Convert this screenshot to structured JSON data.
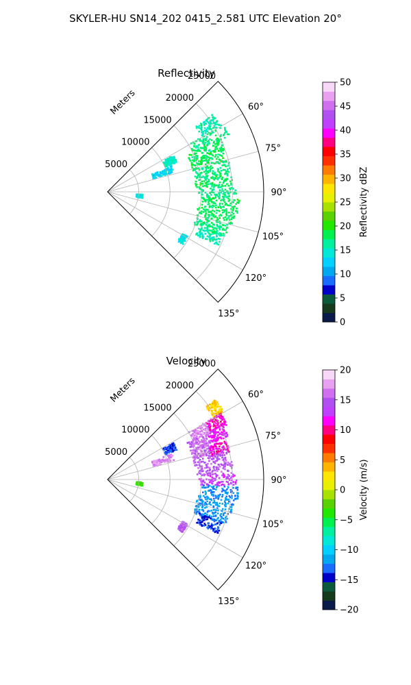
{
  "figure_title": "SKYLER-HU  SN14_202  0415_2.581 UTC Elevation 20°",
  "chart_data": [
    {
      "type": "heatmap",
      "title": "Reflectivity",
      "range_axis_label": "Meters",
      "range_ticks": [
        "5000",
        "10000",
        "15000",
        "20000",
        "25000"
      ],
      "range_values": [
        5000,
        10000,
        15000,
        20000,
        25000
      ],
      "range_max": 25000,
      "azimuth_ticks": [
        "60°",
        "75°",
        "90°",
        "105°",
        "120°",
        "135°"
      ],
      "azimuth_values": [
        60,
        75,
        90,
        105,
        120,
        135
      ],
      "azimuth_range": [
        45,
        135
      ],
      "grid": true,
      "colorbar": {
        "label": "Reflectivity dBZ",
        "min": 0,
        "max": 50,
        "ticks": [
          "0",
          "5",
          "10",
          "15",
          "20",
          "25",
          "30",
          "35",
          "40",
          "45",
          "50"
        ],
        "colors": [
          "#0a1b4a",
          "#153a1c",
          "#0c5a3c",
          "#0000c8",
          "#1a6cff",
          "#00a8f0",
          "#00d0ff",
          "#00e8d8",
          "#00f0a0",
          "#00f050",
          "#22e800",
          "#5ad200",
          "#a8e000",
          "#e6f000",
          "#ffe600",
          "#ffb400",
          "#ff7c00",
          "#ff3000",
          "#ff0000",
          "#ff0080",
          "#ff00ff",
          "#c040ff",
          "#b050f0",
          "#d070f0",
          "#e8a0f0",
          "#f8d8f8"
        ]
      },
      "cells": [
        {
          "az": 56,
          "r0": 17500,
          "r1": 21000,
          "value": 16
        },
        {
          "az": 62,
          "r0": 15000,
          "r1": 21500,
          "value": 17
        },
        {
          "az": 67,
          "r0": 14000,
          "r1": 20000,
          "value": 18
        },
        {
          "az": 72,
          "r0": 14000,
          "r1": 19500,
          "value": 18
        },
        {
          "az": 78,
          "r0": 14000,
          "r1": 20000,
          "value": 17
        },
        {
          "az": 84,
          "r0": 14000,
          "r1": 20000,
          "value": 18
        },
        {
          "az": 90,
          "r0": 14500,
          "r1": 20500,
          "value": 17
        },
        {
          "az": 96,
          "r0": 15000,
          "r1": 21000,
          "value": 18
        },
        {
          "az": 102,
          "r0": 14500,
          "r1": 20500,
          "value": 18
        },
        {
          "az": 108,
          "r0": 14500,
          "r1": 20000,
          "value": 17
        },
        {
          "az": 113,
          "r0": 15500,
          "r1": 19500,
          "value": 16
        },
        {
          "az": 63,
          "r0": 10000,
          "r1": 12000,
          "value": 15
        },
        {
          "az": 70,
          "r0": 7500,
          "r1": 11000,
          "value": 13
        },
        {
          "az": 96,
          "r0": 4500,
          "r1": 5500,
          "value": 14
        },
        {
          "az": 122,
          "r0": 13500,
          "r1": 14500,
          "value": 14
        }
      ]
    },
    {
      "type": "heatmap",
      "title": "Velocity",
      "range_axis_label": "Meters",
      "range_ticks": [
        "5000",
        "10000",
        "15000",
        "20000",
        "25000"
      ],
      "range_values": [
        5000,
        10000,
        15000,
        20000,
        25000
      ],
      "range_max": 25000,
      "azimuth_ticks": [
        "60°",
        "75°",
        "90°",
        "105°",
        "120°",
        "135°"
      ],
      "azimuth_values": [
        60,
        75,
        90,
        105,
        120,
        135
      ],
      "azimuth_range": [
        45,
        135
      ],
      "grid": true,
      "colorbar": {
        "label": "Velocity (m/s)",
        "min": -20,
        "max": 20,
        "ticks": [
          "−20",
          "−15",
          "−10",
          "−5",
          "0",
          "5",
          "10",
          "15",
          "20"
        ],
        "colors": [
          "#0a1b4a",
          "#153a1c",
          "#0c5a3c",
          "#0000c8",
          "#1a6cff",
          "#00a8f0",
          "#00d0ff",
          "#00e8d8",
          "#00f0a0",
          "#00f050",
          "#22e800",
          "#5ad200",
          "#a8e000",
          "#e6f000",
          "#ffe600",
          "#ffb400",
          "#ff7c00",
          "#ff3000",
          "#ff0000",
          "#ff0080",
          "#ff00ff",
          "#c040ff",
          "#b050f0",
          "#d070f0",
          "#e8a0f0",
          "#f8d8f8"
        ]
      },
      "cells": [
        {
          "az": 56,
          "r0": 19500,
          "r1": 21500,
          "value": 3
        },
        {
          "az": 62,
          "r0": 18000,
          "r1": 21000,
          "value": 11
        },
        {
          "az": 67,
          "r0": 17500,
          "r1": 20500,
          "value": 12
        },
        {
          "az": 62,
          "r0": 15000,
          "r1": 18000,
          "value": 17
        },
        {
          "az": 67,
          "r0": 14000,
          "r1": 17500,
          "value": 16
        },
        {
          "az": 72,
          "r0": 14000,
          "r1": 17000,
          "value": 16
        },
        {
          "az": 74,
          "r0": 17000,
          "r1": 20000,
          "value": 11
        },
        {
          "az": 78,
          "r0": 14000,
          "r1": 19500,
          "value": 15
        },
        {
          "az": 84,
          "r0": 14000,
          "r1": 20000,
          "value": 15
        },
        {
          "az": 90,
          "r0": 14500,
          "r1": 20500,
          "value": 13
        },
        {
          "az": 96,
          "r0": 15000,
          "r1": 21000,
          "value": -12
        },
        {
          "az": 102,
          "r0": 14500,
          "r1": 20500,
          "value": -12
        },
        {
          "az": 108,
          "r0": 14500,
          "r1": 20000,
          "value": -12
        },
        {
          "az": 113,
          "r0": 15500,
          "r1": 19500,
          "value": -14
        },
        {
          "az": 63,
          "r0": 10000,
          "r1": 12000,
          "value": -14
        },
        {
          "az": 70,
          "r0": 7500,
          "r1": 11000,
          "value": 17
        },
        {
          "az": 96,
          "r0": 4500,
          "r1": 5500,
          "value": -3
        },
        {
          "az": 122,
          "r0": 13500,
          "r1": 14500,
          "value": 15
        }
      ]
    }
  ]
}
